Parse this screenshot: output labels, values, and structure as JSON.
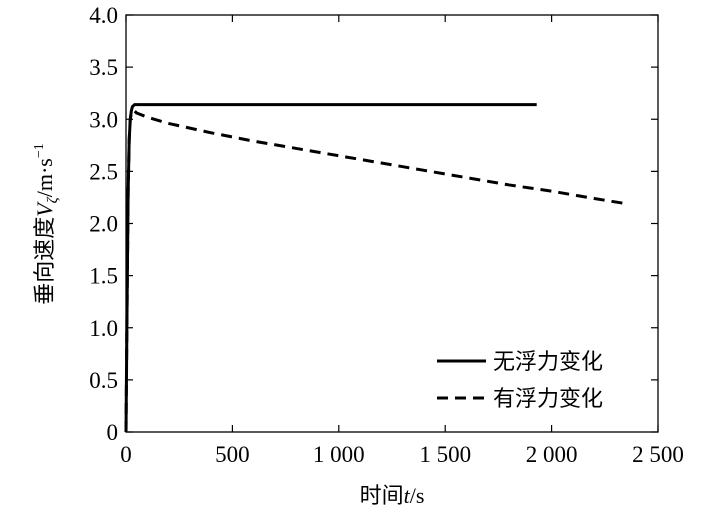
{
  "chart_data": {
    "type": "line",
    "xlabel": {
      "prefix": "时间",
      "var": "t",
      "unit": "/s"
    },
    "ylabel": {
      "prefix": "垂向速度",
      "var": "V",
      "sub": "ζ",
      "unit": "/m·s",
      "sup": "−1"
    },
    "xlim": [
      0,
      2500
    ],
    "ylim": [
      0,
      4.0
    ],
    "x_ticks": [
      0,
      500,
      1000,
      1500,
      2000,
      2500
    ],
    "x_tick_labels": [
      "0",
      "500",
      "1 000",
      "1 500",
      "2 000",
      "2 500"
    ],
    "y_ticks": [
      0,
      0.5,
      1.0,
      1.5,
      2.0,
      2.5,
      3.0,
      3.5,
      4.0
    ],
    "y_tick_labels": [
      "0",
      "0.5",
      "1.0",
      "1.5",
      "2.0",
      "2.5",
      "3.0",
      "3.5",
      "4.0"
    ],
    "grid": false,
    "legend_position": "bottom-right",
    "series": [
      {
        "name": "无浮力变化",
        "style": "solid",
        "color": "#000000",
        "x": [
          0,
          5,
          10,
          15,
          20,
          25,
          30,
          40,
          50,
          1930
        ],
        "y": [
          0,
          1.2,
          2.3,
          2.8,
          3.0,
          3.08,
          3.12,
          3.14,
          3.14,
          3.14
        ]
      },
      {
        "name": "有浮力变化",
        "style": "dashed",
        "color": "#000000",
        "x": [
          0,
          5,
          10,
          15,
          20,
          25,
          30,
          40,
          50,
          100,
          200,
          400,
          600,
          800,
          1000,
          1200,
          1400,
          1600,
          1800,
          2000,
          2200,
          2350
        ],
        "y": [
          0,
          1.2,
          2.3,
          2.8,
          3.0,
          3.06,
          3.08,
          3.08,
          3.06,
          3.02,
          2.96,
          2.87,
          2.79,
          2.72,
          2.65,
          2.58,
          2.51,
          2.44,
          2.37,
          2.31,
          2.24,
          2.19
        ]
      }
    ]
  }
}
